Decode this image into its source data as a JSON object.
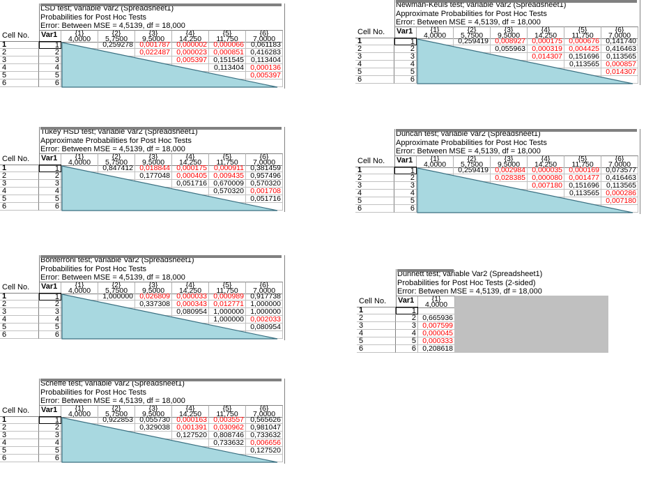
{
  "header": {
    "cell_no": "Cell No.",
    "var": "Var1",
    "columns": [
      {
        "id": "{1}",
        "mean": "4,0000"
      },
      {
        "id": "{2}",
        "mean": "5,7500"
      },
      {
        "id": "{3}",
        "mean": "9,5000"
      },
      {
        "id": "{4}",
        "mean": "14,250"
      },
      {
        "id": "{5}",
        "mean": "11,750"
      },
      {
        "id": "{6}",
        "mean": "7,0000"
      }
    ],
    "rows": [
      "1",
      "2",
      "3",
      "4",
      "5",
      "6"
    ]
  },
  "panels": [
    {
      "key": "lsd",
      "title": [
        "LSD test; variable Var2 (Spreadsheet1)",
        "Probabilities for Post Hoc Tests",
        "Error: Between MSE = 4,5139, df = 18,000"
      ],
      "cells": [
        [
          "",
          "0,259278",
          "0,001787",
          "0,000002",
          "0,000066",
          "0,061183"
        ],
        [
          "",
          "",
          "0,022487",
          "0,000023",
          "0,000851",
          "0,416283"
        ],
        [
          "",
          "",
          "",
          "0,005397",
          "0,151545",
          "0,113404"
        ],
        [
          "",
          "",
          "",
          "",
          "0,113404",
          "0,000136"
        ],
        [
          "",
          "",
          "",
          "",
          "",
          "0,005397"
        ],
        [
          "",
          "",
          "",
          "",
          "",
          ""
        ]
      ],
      "red": [
        [
          0,
          0,
          1,
          1,
          1,
          0
        ],
        [
          0,
          0,
          1,
          1,
          1,
          0
        ],
        [
          0,
          0,
          0,
          1,
          0,
          0
        ],
        [
          0,
          0,
          0,
          0,
          0,
          1
        ],
        [
          0,
          0,
          0,
          0,
          0,
          1
        ],
        [
          0,
          0,
          0,
          0,
          0,
          0
        ]
      ]
    },
    {
      "key": "tukey",
      "title": [
        "Tukey HSD test; variable Var2 (Spreadsheet1)",
        "Approximate Probabilities for Post Hoc Tests",
        "Error: Between MSE = 4,5139, df = 18,000"
      ],
      "cells": [
        [
          "",
          "0,847412",
          "0,018844",
          "0,000175",
          "0,000911",
          "0,381459"
        ],
        [
          "",
          "",
          "0,177048",
          "0,000405",
          "0,009435",
          "0,957496"
        ],
        [
          "",
          "",
          "",
          "0,051716",
          "0,670009",
          "0,570320"
        ],
        [
          "",
          "",
          "",
          "",
          "0,570320",
          "0,001708"
        ],
        [
          "",
          "",
          "",
          "",
          "",
          "0,051716"
        ],
        [
          "",
          "",
          "",
          "",
          "",
          ""
        ]
      ],
      "red": [
        [
          0,
          0,
          1,
          1,
          1,
          0
        ],
        [
          0,
          0,
          0,
          1,
          1,
          0
        ],
        [
          0,
          0,
          0,
          0,
          0,
          0
        ],
        [
          0,
          0,
          0,
          0,
          0,
          1
        ],
        [
          0,
          0,
          0,
          0,
          0,
          0
        ],
        [
          0,
          0,
          0,
          0,
          0,
          0
        ]
      ]
    },
    {
      "key": "bonferroni",
      "title": [
        "Bonferroni test; variable Var2 (Spreadsheet1)",
        "Probabilities for Post Hoc Tests",
        "Error: Between MSE = 4,5139, df = 18,000"
      ],
      "cells": [
        [
          "",
          "1,000000",
          "0,026809",
          "0,000033",
          "0,000989",
          "0,917738"
        ],
        [
          "",
          "",
          "0,337308",
          "0,000343",
          "0,012771",
          "1,000000"
        ],
        [
          "",
          "",
          "",
          "0,080954",
          "1,000000",
          "1,000000"
        ],
        [
          "",
          "",
          "",
          "",
          "1,000000",
          "0,002033"
        ],
        [
          "",
          "",
          "",
          "",
          "",
          "0,080954"
        ],
        [
          "",
          "",
          "",
          "",
          "",
          ""
        ]
      ],
      "red": [
        [
          0,
          0,
          1,
          1,
          1,
          0
        ],
        [
          0,
          0,
          0,
          1,
          1,
          0
        ],
        [
          0,
          0,
          0,
          0,
          0,
          0
        ],
        [
          0,
          0,
          0,
          0,
          0,
          1
        ],
        [
          0,
          0,
          0,
          0,
          0,
          0
        ],
        [
          0,
          0,
          0,
          0,
          0,
          0
        ]
      ]
    },
    {
      "key": "scheffe",
      "title": [
        "Scheffe test; variable Var2 (Spreadsheet1)",
        "Probabilities for Post Hoc Tests",
        "Error: Between MSE = 4,5139, df = 18,000"
      ],
      "cells": [
        [
          "",
          "0,922853",
          "0,055730",
          "0,000163",
          "0,003557",
          "0,565626"
        ],
        [
          "",
          "",
          "0,329038",
          "0,001391",
          "0,030962",
          "0,981047"
        ],
        [
          "",
          "",
          "",
          "0,127520",
          "0,808746",
          "0,733632"
        ],
        [
          "",
          "",
          "",
          "",
          "0,733632",
          "0,006656"
        ],
        [
          "",
          "",
          "",
          "",
          "",
          "0,127520"
        ],
        [
          "",
          "",
          "",
          "",
          "",
          ""
        ]
      ],
      "red": [
        [
          0,
          0,
          0,
          1,
          1,
          0
        ],
        [
          0,
          0,
          0,
          1,
          1,
          0
        ],
        [
          0,
          0,
          0,
          0,
          0,
          0
        ],
        [
          0,
          0,
          0,
          0,
          0,
          1
        ],
        [
          0,
          0,
          0,
          0,
          0,
          0
        ],
        [
          0,
          0,
          0,
          0,
          0,
          0
        ]
      ]
    },
    {
      "key": "newman",
      "title": [
        "Newman-Keuls test; variable Var2 (Spreadsheet1)",
        "Approximate Probabilities for Post Hoc Tests",
        "Error: Between MSE = 4,5139, df = 18,000"
      ],
      "cells": [
        [
          "",
          "0,259419",
          "0,008927",
          "0,000175",
          "0,000676",
          "0,141740"
        ],
        [
          "",
          "",
          "0,055963",
          "0,000319",
          "0,004425",
          "0,416463"
        ],
        [
          "",
          "",
          "",
          "0,014307",
          "0,151696",
          "0,113565"
        ],
        [
          "",
          "",
          "",
          "",
          "0,113565",
          "0,000857"
        ],
        [
          "",
          "",
          "",
          "",
          "",
          "0,014307"
        ],
        [
          "",
          "",
          "",
          "",
          "",
          ""
        ]
      ],
      "red": [
        [
          0,
          0,
          1,
          1,
          1,
          0
        ],
        [
          0,
          0,
          0,
          1,
          1,
          0
        ],
        [
          0,
          0,
          0,
          1,
          0,
          0
        ],
        [
          0,
          0,
          0,
          0,
          0,
          1
        ],
        [
          0,
          0,
          0,
          0,
          0,
          1
        ],
        [
          0,
          0,
          0,
          0,
          0,
          0
        ]
      ]
    },
    {
      "key": "duncan",
      "title": [
        "Duncan test; variable Var2 (Spreadsheet1)",
        "Approximate Probabilities for Post Hoc Tests",
        "Error: Between MSE = 4,5139, df = 18,000"
      ],
      "cells": [
        [
          "",
          "0,259419",
          "0,002984",
          "0,000035",
          "0,000169",
          "0,073577"
        ],
        [
          "",
          "",
          "0,028385",
          "0,000080",
          "0,001477",
          "0,416463"
        ],
        [
          "",
          "",
          "",
          "0,007180",
          "0,151696",
          "0,113565"
        ],
        [
          "",
          "",
          "",
          "",
          "0,113565",
          "0,000286"
        ],
        [
          "",
          "",
          "",
          "",
          "",
          "0,007180"
        ],
        [
          "",
          "",
          "",
          "",
          "",
          ""
        ]
      ],
      "red": [
        [
          0,
          0,
          1,
          1,
          1,
          0
        ],
        [
          0,
          0,
          1,
          1,
          1,
          0
        ],
        [
          0,
          0,
          0,
          1,
          0,
          0
        ],
        [
          0,
          0,
          0,
          0,
          0,
          1
        ],
        [
          0,
          0,
          0,
          0,
          0,
          1
        ],
        [
          0,
          0,
          0,
          0,
          0,
          0
        ]
      ]
    }
  ],
  "dunnett": {
    "title": [
      "Dunnett test; variable Var2 (Spreadsheet1)",
      "Probabilities for Post Hoc Tests (2-sided)",
      "Error: Between MSE = 4,5139, df = 18,000"
    ],
    "values": [
      "",
      "0,665936",
      "0,007599",
      "0,000045",
      "0,000333",
      "0,208618"
    ],
    "red": [
      0,
      0,
      1,
      1,
      1,
      0
    ]
  },
  "colors": {
    "triangle_fill": "#a8d8e0",
    "triangle_stroke": "#3a6f80",
    "sig": "#ff0000",
    "grid": "#c0c0c0"
  }
}
